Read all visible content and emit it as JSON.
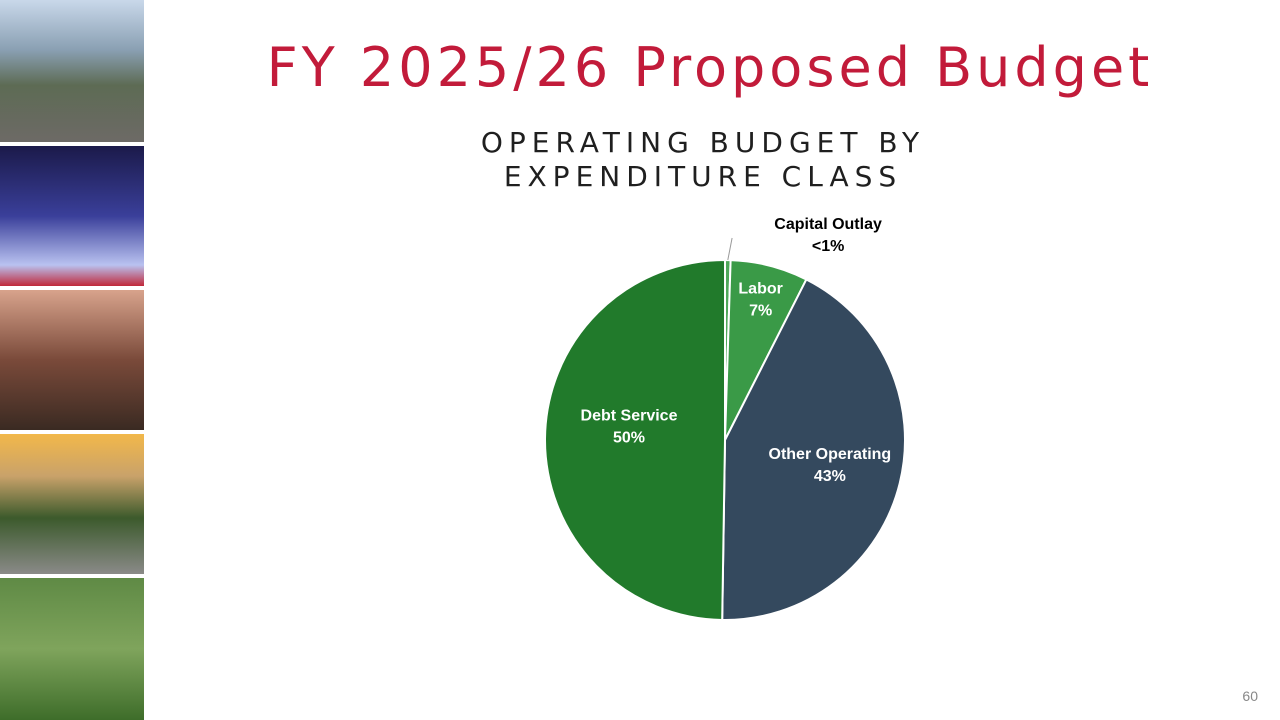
{
  "slide": {
    "title": "FY 2025/26 Proposed Budget",
    "page_number": "60"
  },
  "chart_data": {
    "type": "pie",
    "title": "OPERATING BUDGET BY EXPENDITURE CLASS",
    "categories": [
      "Capital Outlay",
      "Labor",
      "Other Operating",
      "Debt Service"
    ],
    "values": [
      0.5,
      7,
      43,
      50
    ],
    "value_labels": [
      "<1%",
      "7%",
      "43%",
      "50%"
    ],
    "colors": [
      "#4fa85a",
      "#3a9a47",
      "#34495e",
      "#217a2b"
    ]
  }
}
